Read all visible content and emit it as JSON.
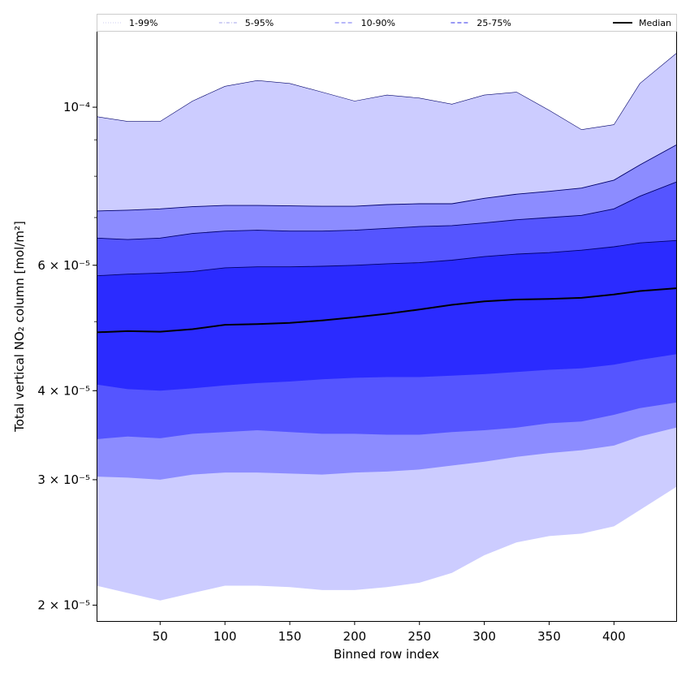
{
  "chart_data": {
    "type": "area",
    "xlabel": "Binned row index",
    "ylabel": "Total vertical NO₂ column [mol/m²]",
    "yscale": "log",
    "xlim": [
      1,
      448
    ],
    "ylim": [
      1.9e-05,
      0.000128
    ],
    "grid": false,
    "legend_placement": "top (horizontal row above plot)",
    "x_ticks": [
      50,
      100,
      150,
      200,
      250,
      300,
      350,
      400
    ],
    "y_ticks": [
      {
        "value": 2e-05,
        "label": "2 × 10⁻⁵"
      },
      {
        "value": 3e-05,
        "label": "3 × 10⁻⁵"
      },
      {
        "value": 4e-05,
        "label": "4 × 10⁻⁵"
      },
      {
        "value": 6e-05,
        "label": "6 × 10⁻⁵"
      },
      {
        "value": 0.0001,
        "label": "10⁻⁴"
      }
    ],
    "legend": [
      {
        "label": "1-99%",
        "style": "dotted",
        "color": "#d8d8f4"
      },
      {
        "label": "5-95%",
        "style": "dashdot",
        "color": "#b4b4ee"
      },
      {
        "label": "10-90%",
        "style": "dashed",
        "color": "#8c8cf5"
      },
      {
        "label": "25-75%",
        "style": "dashed",
        "color": "#5a5aee"
      },
      {
        "label": "Median",
        "style": "solid",
        "color": "#000000"
      }
    ],
    "x": [
      1,
      25,
      50,
      75,
      100,
      125,
      150,
      175,
      200,
      225,
      250,
      275,
      300,
      325,
      350,
      375,
      400,
      420,
      448
    ],
    "bands": [
      {
        "name": "1-99%",
        "color": "#ccccff",
        "lower": [
          2.13e-05,
          2.08e-05,
          2.03e-05,
          2.08e-05,
          2.13e-05,
          2.13e-05,
          2.12e-05,
          2.1e-05,
          2.1e-05,
          2.12e-05,
          2.15e-05,
          2.22e-05,
          2.35e-05,
          2.45e-05,
          2.5e-05,
          2.52e-05,
          2.58e-05,
          2.72e-05,
          2.93e-05
        ],
        "upper": [
          9.7e-05,
          9.55e-05,
          9.55e-05,
          0.000102,
          0.000107,
          0.000109,
          0.000108,
          0.000105,
          0.000102,
          0.000104,
          0.000103,
          0.000101,
          0.000104,
          0.000105,
          9.9e-05,
          9.3e-05,
          9.45e-05,
          0.000108,
          0.000119
        ]
      },
      {
        "name": "5-95%",
        "color": "#8c8cff",
        "lower": [
          3.03e-05,
          3.02e-05,
          3e-05,
          3.05e-05,
          3.07e-05,
          3.07e-05,
          3.06e-05,
          3.05e-05,
          3.07e-05,
          3.08e-05,
          3.1e-05,
          3.14e-05,
          3.18e-05,
          3.23e-05,
          3.27e-05,
          3.3e-05,
          3.35e-05,
          3.45e-05,
          3.55e-05
        ],
        "upper": [
          7.15e-05,
          7.17e-05,
          7.2e-05,
          7.25e-05,
          7.28e-05,
          7.28e-05,
          7.27e-05,
          7.26e-05,
          7.26e-05,
          7.3e-05,
          7.32e-05,
          7.32e-05,
          7.45e-05,
          7.55e-05,
          7.62e-05,
          7.7e-05,
          7.9e-05,
          8.3e-05,
          8.85e-05
        ]
      },
      {
        "name": "10-90%",
        "color": "#5555ff",
        "lower": [
          3.42e-05,
          3.45e-05,
          3.43e-05,
          3.48e-05,
          3.5e-05,
          3.52e-05,
          3.5e-05,
          3.48e-05,
          3.48e-05,
          3.47e-05,
          3.47e-05,
          3.5e-05,
          3.52e-05,
          3.55e-05,
          3.6e-05,
          3.62e-05,
          3.7e-05,
          3.78e-05,
          3.85e-05
        ],
        "upper": [
          6.55e-05,
          6.52e-05,
          6.55e-05,
          6.65e-05,
          6.7e-05,
          6.72e-05,
          6.7e-05,
          6.7e-05,
          6.72e-05,
          6.76e-05,
          6.8e-05,
          6.82e-05,
          6.88e-05,
          6.95e-05,
          7e-05,
          7.05e-05,
          7.2e-05,
          7.5e-05,
          7.85e-05
        ]
      },
      {
        "name": "25-75%",
        "color": "#2b2bff",
        "lower": [
          4.08e-05,
          4.02e-05,
          4e-05,
          4.03e-05,
          4.07e-05,
          4.1e-05,
          4.12e-05,
          4.15e-05,
          4.17e-05,
          4.18e-05,
          4.18e-05,
          4.2e-05,
          4.22e-05,
          4.25e-05,
          4.28e-05,
          4.3e-05,
          4.35e-05,
          4.42e-05,
          4.5e-05
        ],
        "upper": [
          5.8e-05,
          5.83e-05,
          5.85e-05,
          5.88e-05,
          5.95e-05,
          5.97e-05,
          5.97e-05,
          5.98e-05,
          6e-05,
          6.03e-05,
          6.05e-05,
          6.1e-05,
          6.17e-05,
          6.22e-05,
          6.25e-05,
          6.3e-05,
          6.37e-05,
          6.45e-05,
          6.5e-05
        ]
      }
    ],
    "median": {
      "name": "Median",
      "color": "#000000",
      "values": [
        4.83e-05,
        4.85e-05,
        4.84e-05,
        4.88e-05,
        4.95e-05,
        4.96e-05,
        4.98e-05,
        5.02e-05,
        5.07e-05,
        5.13e-05,
        5.2e-05,
        5.28e-05,
        5.34e-05,
        5.37e-05,
        5.38e-05,
        5.4e-05,
        5.46e-05,
        5.52e-05,
        5.57e-05
      ]
    }
  }
}
